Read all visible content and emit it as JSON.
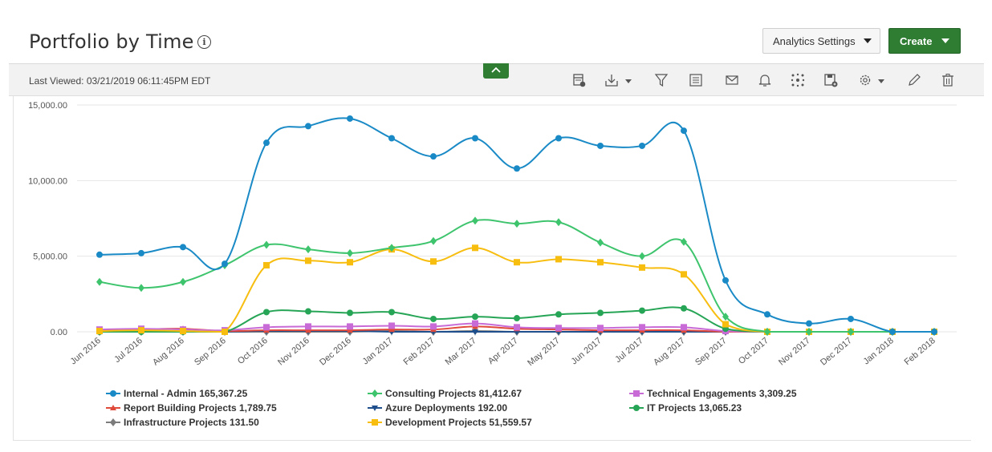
{
  "header": {
    "title": "Portfolio by Time",
    "analytics_settings_label": "Analytics Settings",
    "create_label": "Create"
  },
  "toolbar": {
    "last_viewed": "Last Viewed: 03/21/2019 06:11:45PM EDT",
    "icons": [
      "report-icon",
      "download-icon",
      "filter-icon",
      "columns-icon",
      "mail-icon",
      "bell-icon",
      "share-icon",
      "save-icon",
      "settings-icon",
      "edit-icon",
      "delete-icon"
    ]
  },
  "chart_data": {
    "type": "line",
    "title": "",
    "xlabel": "",
    "ylabel": "",
    "ylim": [
      0,
      15000
    ],
    "yticks": [
      "0.00",
      "5,000.00",
      "10,000.00",
      "15,000.00"
    ],
    "grid": true,
    "legend_position": "bottom",
    "categories": [
      "Jun 2016",
      "Jul 2016",
      "Aug 2016",
      "Sep 2016",
      "Oct 2016",
      "Nov 2016",
      "Dec 2016",
      "Jan 2017",
      "Feb 2017",
      "Mar 2017",
      "Apr 2017",
      "May 2017",
      "Jun 2017",
      "Jul 2017",
      "Aug 2017",
      "Sep 2017",
      "Oct 2017",
      "Nov 2017",
      "Dec 2017",
      "Jan 2018",
      "Feb 2018"
    ],
    "series": [
      {
        "name": "Internal - Admin",
        "total": "165,367.25",
        "color": "#1a8ac6",
        "marker": "circle",
        "values": [
          5100,
          5200,
          5600,
          4500,
          12500,
          13600,
          14100,
          12800,
          11600,
          12800,
          10800,
          12800,
          12300,
          12300,
          13300,
          3400,
          1150,
          550,
          850,
          0,
          0
        ]
      },
      {
        "name": "Consulting Projects",
        "total": "81,412.67",
        "color": "#3ec46d",
        "marker": "diamond",
        "values": [
          3300,
          2900,
          3300,
          4400,
          5750,
          5450,
          5200,
          5550,
          6000,
          7350,
          7150,
          7250,
          5900,
          5000,
          5950,
          1000,
          0,
          0,
          0,
          0,
          0
        ]
      },
      {
        "name": "Technical Engagements",
        "total": "3,309.25",
        "color": "#c86bd6",
        "marker": "square",
        "values": [
          150,
          200,
          150,
          100,
          300,
          350,
          350,
          400,
          350,
          550,
          300,
          250,
          250,
          300,
          300,
          50,
          0,
          0,
          0,
          0,
          0
        ]
      },
      {
        "name": "Report Building Projects",
        "total": "1,789.75",
        "color": "#e04a3b",
        "marker": "triangle",
        "values": [
          100,
          150,
          200,
          50,
          100,
          100,
          100,
          150,
          150,
          350,
          200,
          150,
          100,
          100,
          100,
          0,
          0,
          0,
          0,
          0,
          0
        ]
      },
      {
        "name": "Azure Deployments",
        "total": "192.00",
        "color": "#1f4e8c",
        "marker": "triangle-down",
        "values": [
          0,
          0,
          0,
          0,
          50,
          50,
          50,
          0,
          0,
          0,
          0,
          0,
          0,
          0,
          0,
          0,
          0,
          0,
          0,
          0,
          0
        ]
      },
      {
        "name": "IT Projects",
        "total": "13,065.23",
        "color": "#27a556",
        "marker": "circle",
        "values": [
          0,
          0,
          0,
          0,
          1300,
          1350,
          1250,
          1300,
          850,
          1000,
          900,
          1150,
          1250,
          1400,
          1550,
          200,
          0,
          0,
          0,
          0,
          0
        ]
      },
      {
        "name": "Infrastructure Projects",
        "total": "131.50",
        "color": "#7c7c7c",
        "marker": "diamond",
        "values": [
          0,
          0,
          0,
          0,
          0,
          0,
          0,
          50,
          0,
          50,
          0,
          0,
          0,
          0,
          0,
          0,
          0,
          0,
          0,
          0,
          0
        ]
      },
      {
        "name": "Development Projects",
        "total": "51,559.57",
        "color": "#f7bd0f",
        "marker": "square",
        "values": [
          50,
          100,
          50,
          0,
          4400,
          4700,
          4600,
          5450,
          4650,
          5550,
          4600,
          4800,
          4600,
          4250,
          3800,
          500,
          0,
          0,
          0,
          0,
          0
        ]
      }
    ]
  }
}
